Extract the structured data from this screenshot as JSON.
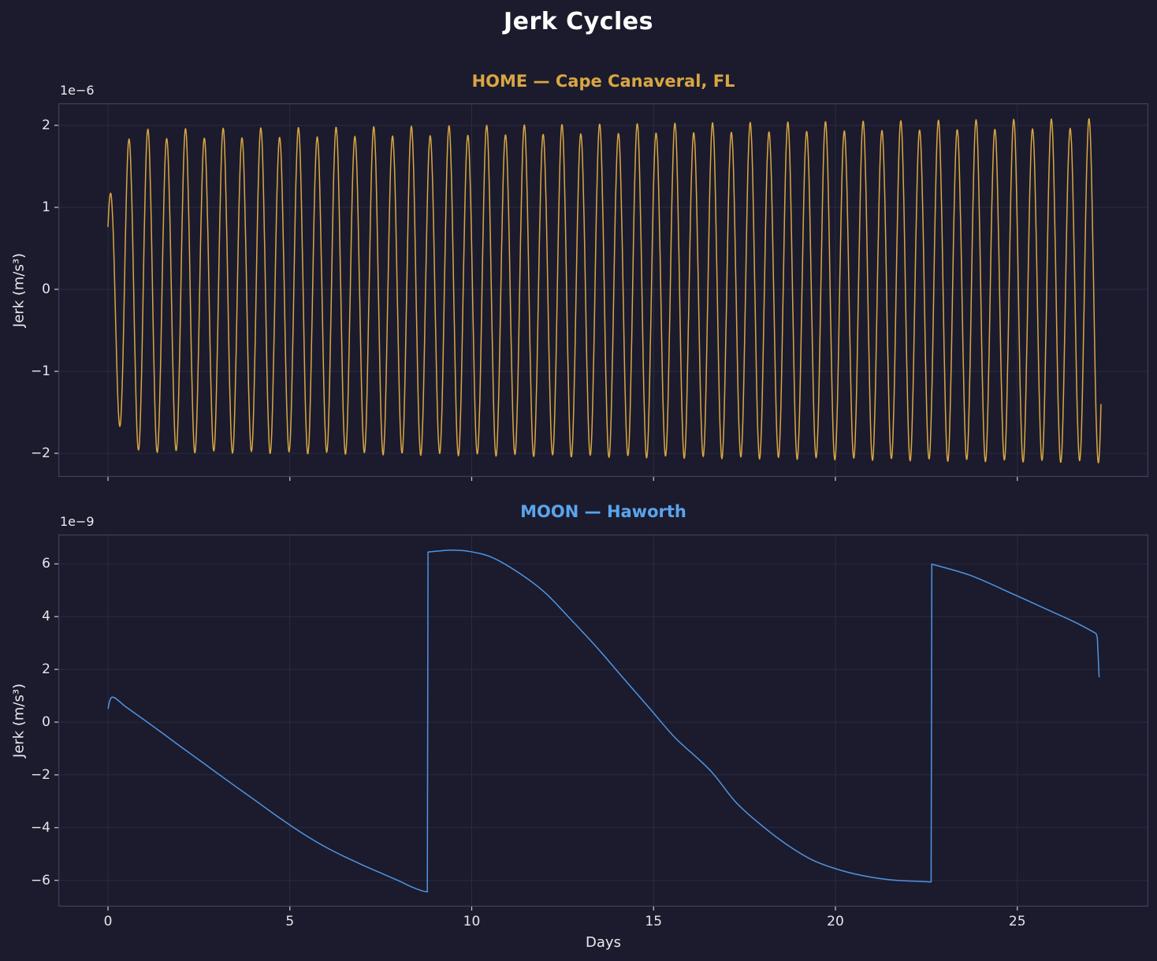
{
  "figure": {
    "title": "Jerk Cycles",
    "xlabel": "Days",
    "xticks_days": [
      0,
      5,
      10,
      15,
      20,
      25
    ],
    "xtick_labels": [
      "0",
      "5",
      "10",
      "15",
      "20",
      "25"
    ],
    "colors": {
      "background": "#1b1b2d",
      "text": "#eaeaf0",
      "grid": "#2a2a44",
      "spine": "#3f3f60",
      "tick_mark": "#c9c9d6",
      "home_accent": "#d9a642",
      "moon_accent": "#5aa5ec",
      "moon_line": "#5094e2"
    }
  },
  "chart_data": [
    {
      "id": "home",
      "type": "line",
      "title": "HOME — Cape Canaveral, FL",
      "ylabel": "Jerk (m/s³)",
      "offset_label": "1e−6",
      "units": "values in 1e-6 m/s^3",
      "line_color": "#d9a642",
      "grid": true,
      "legend": false,
      "yticks": [
        2,
        1,
        0,
        -1,
        -2
      ],
      "ytick_labels": [
        "2",
        "1",
        "0",
        "−1",
        "−2"
      ],
      "ylim": [
        -2.28,
        2.27
      ],
      "xlim_days": [
        -1.37,
        28.63
      ],
      "x_start_day": 0,
      "x_end_day": 27.3,
      "signal": {
        "kind": "amplitude_modulated_sine",
        "description": "semidiurnal tidal jerk, ~52.8 cycles over 27.3 days, peaks ≈1.87e-6 early growing to ≈2.06e-6 late, troughs ≈ −1.85e-6 to −2.1e-6, first partial peak ≈1.1e-6 at day 0.07 starting from 0.78e-6",
        "period_days": 0.5175,
        "phase_rad": 0.824,
        "base_amplitude": 1.93,
        "amplitude_growth_per_day": 0.005,
        "alternation_amplitude": 0.06,
        "alternation_period_days": 1.035,
        "alternation_phase_rad": 1.0,
        "mean_offset": -0.04,
        "startup_ramp": {
          "start_factor": 0.55,
          "ramp_days": 0.5
        },
        "samples_per_day": 90
      }
    },
    {
      "id": "moon",
      "type": "line",
      "title": "MOON — Haworth",
      "ylabel": "Jerk (m/s³)",
      "offset_label": "1e−9",
      "units": "values in 1e-9 m/s^3",
      "line_color": "#5094e2",
      "grid": true,
      "legend": false,
      "yticks": [
        6,
        4,
        2,
        0,
        -2,
        -4,
        -6
      ],
      "ytick_labels": [
        "6",
        "4",
        "2",
        "0",
        "−2",
        "−4",
        "−6"
      ],
      "ylim": [
        -7.07,
        7.12
      ],
      "xlim_days": [
        -1.37,
        28.63
      ],
      "x_start_day": 0,
      "x_end_day": 27.3,
      "segments": [
        [
          [
            0,
            0.5
          ],
          [
            0.12,
            0.95
          ],
          [
            0.5,
            0.57
          ],
          [
            1,
            0.08
          ],
          [
            1.5,
            -0.42
          ],
          [
            2,
            -0.93
          ],
          [
            2.5,
            -1.43
          ],
          [
            3,
            -1.93
          ],
          [
            3.5,
            -2.43
          ],
          [
            4,
            -2.92
          ],
          [
            4.5,
            -3.42
          ],
          [
            5,
            -3.9
          ],
          [
            5.5,
            -4.35
          ],
          [
            6,
            -4.75
          ],
          [
            6.5,
            -5.1
          ],
          [
            7,
            -5.42
          ],
          [
            7.5,
            -5.72
          ],
          [
            8,
            -6.02
          ],
          [
            8.35,
            -6.25
          ],
          [
            8.6,
            -6.38
          ],
          [
            8.78,
            -6.44
          ]
        ],
        [
          [
            8.8,
            6.45
          ],
          [
            9.4,
            6.52
          ],
          [
            9.9,
            6.48
          ],
          [
            10.55,
            6.25
          ],
          [
            11.3,
            5.66
          ],
          [
            12.0,
            4.93
          ],
          [
            12.7,
            3.93
          ],
          [
            13.45,
            2.82
          ],
          [
            14.16,
            1.68
          ],
          [
            14.88,
            0.54
          ],
          [
            15.6,
            -0.6
          ],
          [
            16.55,
            -1.82
          ],
          [
            17.27,
            -3.05
          ],
          [
            18.0,
            -3.95
          ],
          [
            18.7,
            -4.68
          ],
          [
            19.4,
            -5.25
          ],
          [
            20.15,
            -5.62
          ],
          [
            20.9,
            -5.86
          ],
          [
            21.6,
            -5.99
          ],
          [
            22.3,
            -6.04
          ],
          [
            22.63,
            -6.06
          ]
        ],
        [
          [
            22.65,
            5.99
          ],
          [
            23.7,
            5.57
          ],
          [
            24.8,
            4.91
          ],
          [
            25.9,
            4.22
          ],
          [
            26.6,
            3.78
          ],
          [
            27.1,
            3.41
          ],
          [
            27.17,
            3.35
          ]
        ],
        [
          [
            27.2,
            3.2
          ],
          [
            27.25,
            1.7
          ]
        ]
      ]
    }
  ]
}
